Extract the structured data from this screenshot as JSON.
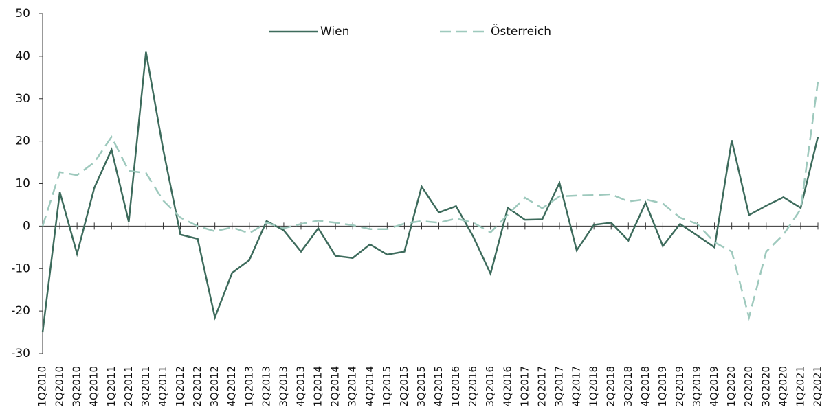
{
  "chart_data": {
    "type": "line",
    "categories": [
      "1Q2010",
      "2Q2010",
      "3Q2010",
      "4Q2010",
      "1Q2011",
      "2Q2011",
      "3Q2011",
      "4Q2011",
      "1Q2012",
      "2Q2012",
      "3Q2012",
      "4Q2012",
      "1Q2013",
      "2Q2013",
      "3Q2013",
      "4Q2013",
      "1Q2014",
      "2Q2014",
      "3Q2014",
      "4Q2014",
      "1Q2015",
      "2Q2015",
      "3Q2015",
      "4Q2015",
      "1Q2016",
      "2Q2016",
      "3Q2016",
      "4Q2016",
      "1Q2017",
      "2Q2017",
      "3Q2017",
      "4Q2017",
      "1Q2018",
      "2Q2018",
      "3Q2018",
      "4Q2018",
      "1Q2019",
      "2Q2019",
      "3Q2019",
      "4Q2019",
      "1Q2020",
      "2Q2020",
      "3Q2020",
      "4Q2020",
      "1Q2021",
      "2Q2021"
    ],
    "series": [
      {
        "name": "Wien",
        "color": "#3d6b5c",
        "dashed": false,
        "values": [
          -25,
          8,
          -6.5,
          9,
          18,
          1,
          41,
          18,
          -2,
          -3,
          -21.5,
          -11,
          -8,
          1.2,
          -1,
          -6,
          -0.5,
          -7,
          -7.5,
          -4.3,
          -6.7,
          -6,
          9.3,
          3.2,
          4.7,
          -2.5,
          -11.2,
          4.3,
          1.5,
          1.6,
          10.2,
          -5.7,
          0.3,
          0.8,
          -3.4,
          5.5,
          -4.7,
          0.5,
          -2.2,
          -5,
          20.2,
          2.6,
          4.8,
          6.8,
          4.3,
          21
        ]
      },
      {
        "name": "Österreich",
        "color": "#9ec9bd",
        "dashed": true,
        "values": [
          0,
          12.7,
          12,
          15,
          21,
          13,
          12.5,
          6,
          2,
          0,
          -1.2,
          -0.3,
          -1.7,
          0.8,
          -0.5,
          0.5,
          1.3,
          0.8,
          0.2,
          -0.7,
          -0.7,
          0.6,
          1.2,
          0.8,
          1.8,
          0.8,
          -1.5,
          2.7,
          6.7,
          4.2,
          7,
          7.2,
          7.3,
          7.5,
          5.8,
          6.3,
          5.3,
          2,
          0.5,
          -3.8,
          -6,
          -21.5,
          -6,
          -2,
          4,
          34
        ]
      }
    ],
    "ylim": [
      -30,
      50
    ],
    "yticks": [
      -30,
      -20,
      -10,
      0,
      10,
      20,
      30,
      40,
      50
    ],
    "grid": false,
    "legend": "top"
  }
}
